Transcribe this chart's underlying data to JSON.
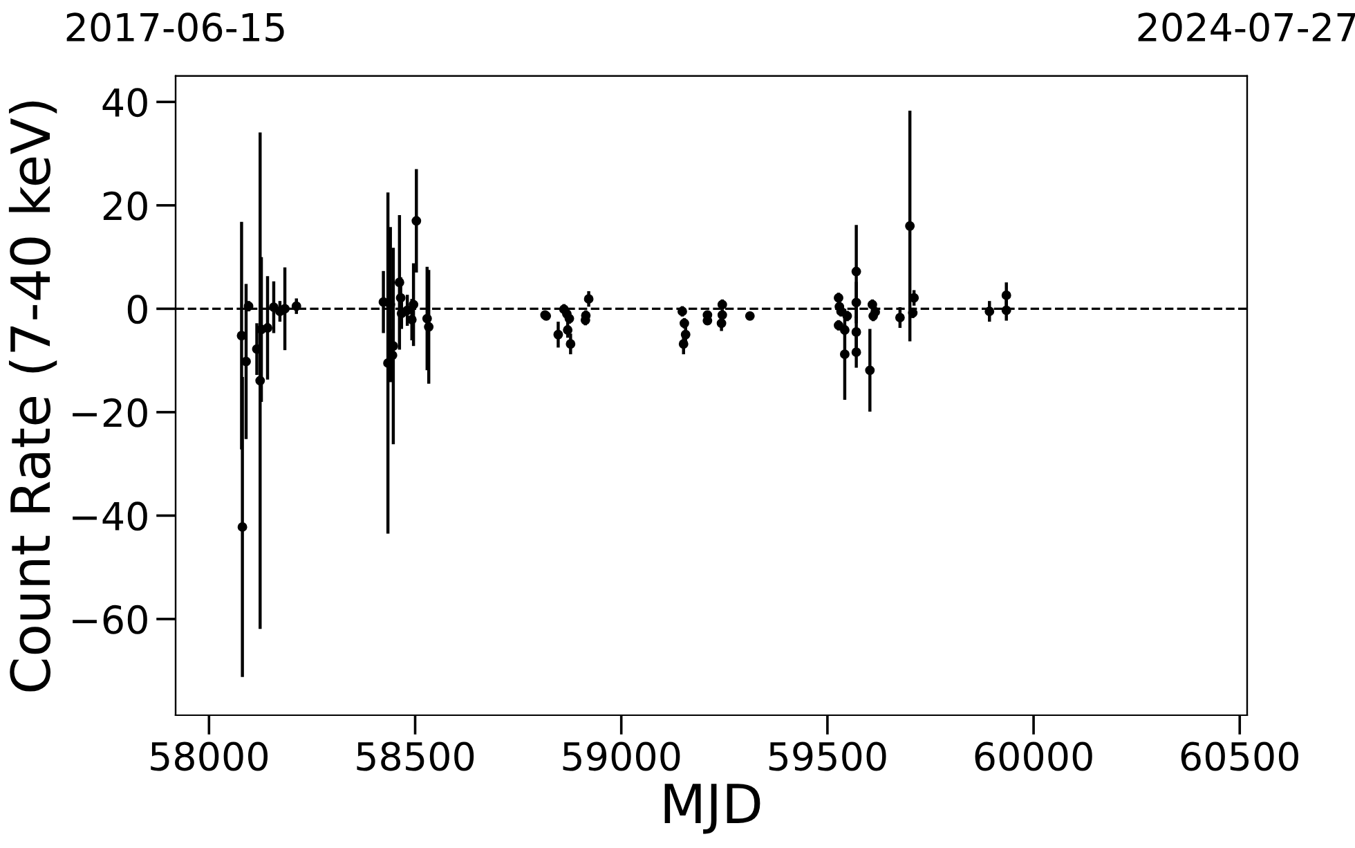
{
  "chart_data": {
    "type": "scatter",
    "xlabel": "MJD",
    "ylabel": "Count Rate (7-40 keV)",
    "xlim": [
      57919,
      60518
    ],
    "xticks": [
      58000,
      58500,
      59000,
      59500,
      60000,
      60500
    ],
    "ylim": [
      -78.6,
      45
    ],
    "yticks": [
      {
        "value": -60,
        "label": "−60"
      },
      {
        "value": -40,
        "label": "−40"
      },
      {
        "value": -20,
        "label": "−20"
      },
      0,
      20,
      40
    ],
    "x2lim": [
      "2017-06-15",
      "2024-07-27"
    ],
    "x2ticks": [
      "2017-06-15",
      "2024-07-27"
    ],
    "marker": "circle",
    "ref_lines": [
      {
        "axis": "y",
        "value": 0,
        "color": "#000000",
        "line_style": "dashed"
      }
    ],
    "series": [
      {
        "color": "#000000",
        "x": [
          58079,
          58081,
          58090,
          58096,
          58116,
          58124,
          58127,
          58142,
          58157,
          58172,
          58184,
          58212,
          58423,
          58434,
          58440,
          58445,
          58447,
          58462,
          58465,
          58467,
          58481,
          58492,
          58496,
          58503,
          58529,
          58533,
          58815,
          58818,
          58847,
          58861,
          58868,
          58870,
          58874,
          58877,
          58913,
          58914,
          58921,
          59148,
          59151,
          59153,
          59156,
          59209,
          59209,
          59243,
          59245,
          59245,
          59312,
          59527,
          59527,
          59529,
          59533,
          59542,
          59542,
          59548,
          59570,
          59570,
          59570,
          59570,
          59603,
          59609,
          59611,
          59616,
          59676,
          59700,
          59707,
          59710,
          59893,
          59934,
          59934
        ],
        "values": [
          -5.2,
          -42.2,
          -10.2,
          0.5,
          -7.8,
          -13.9,
          -4,
          -3.7,
          0.3,
          -0.5,
          0,
          0.5,
          1.3,
          -10.5,
          0.8,
          -9,
          -7.2,
          5.1,
          2.1,
          -0.9,
          -0.3,
          -2.1,
          0.8,
          17,
          -1.9,
          -3.5,
          -1.2,
          -1.4,
          -5,
          -0.1,
          -1,
          -4.1,
          -1.9,
          -6.8,
          -2.2,
          -1.3,
          1.9,
          -0.5,
          -6.8,
          -2.8,
          -5,
          -1.2,
          -2.3,
          -2.8,
          0.8,
          -1.2,
          -1.4,
          2.1,
          -3.2,
          0.4,
          -0.5,
          -4.1,
          -8.8,
          -1.4,
          7.2,
          1.2,
          -4.5,
          -8.4,
          -11.9,
          0.8,
          -1.4,
          -0.6,
          -1.7,
          16,
          -0.8,
          2.1,
          -0.5,
          2.6,
          -0.3
        ],
        "errors": [
          22,
          29,
          15,
          1,
          5,
          48,
          14,
          10,
          5,
          2,
          8,
          1.5,
          6,
          33,
          15,
          5,
          19,
          13,
          4,
          3,
          3,
          4,
          8,
          10,
          10,
          11,
          0.5,
          0.5,
          2.5,
          1,
          1,
          1.5,
          1,
          2,
          1,
          1,
          1.5,
          1,
          2,
          1,
          1.5,
          0.5,
          0.5,
          1.5,
          1,
          1,
          0.5,
          1,
          1,
          1,
          1,
          1,
          8.8,
          1,
          9,
          4,
          3,
          3,
          8,
          1,
          1,
          1,
          2,
          22.3,
          1,
          1.5,
          2,
          2.5,
          2
        ]
      }
    ]
  }
}
